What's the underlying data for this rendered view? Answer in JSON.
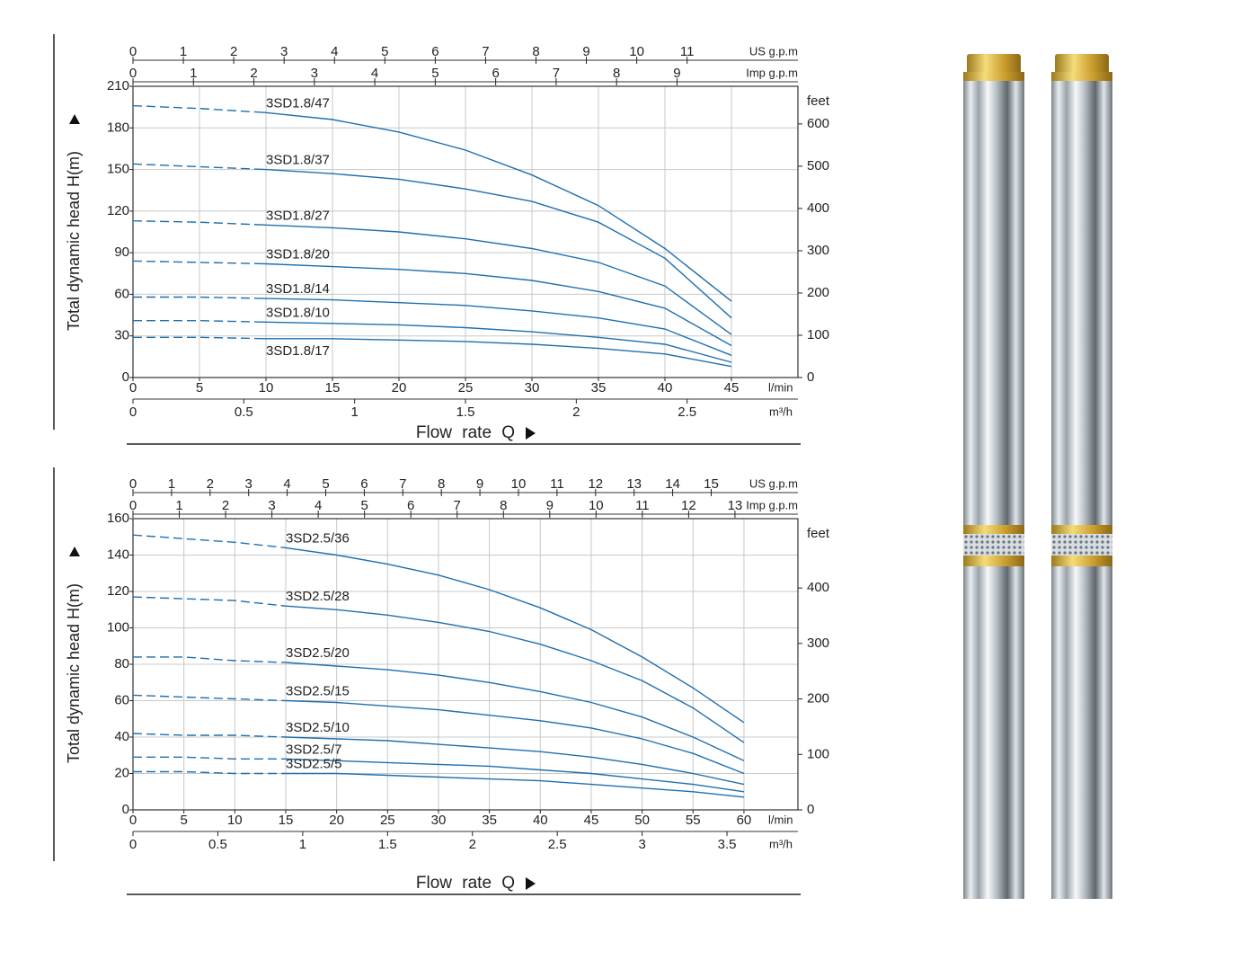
{
  "chart_data": [
    {
      "type": "line",
      "y_label": "Total dynamic head H(m)",
      "x_label": "Flow rate Q",
      "x_unit": "l/min",
      "x": [
        0,
        5,
        10,
        15,
        20,
        25,
        30,
        35,
        40,
        45
      ],
      "xlim": [
        0,
        50
      ],
      "xticks": [
        0,
        5,
        10,
        15,
        20,
        25,
        30,
        35,
        40,
        45
      ],
      "ylim": [
        0,
        210
      ],
      "yticks": [
        0,
        30,
        60,
        90,
        120,
        150,
        180,
        210
      ],
      "y2_unit": "feet",
      "y2lim": [
        0,
        689
      ],
      "y2ticks": [
        0,
        100,
        200,
        300,
        400,
        500,
        600
      ],
      "x2_unit": "m³/h",
      "x2lim": [
        0,
        3
      ],
      "x2ticks": [
        0,
        0.5,
        1,
        1.5,
        2,
        2.5
      ],
      "top_axes": [
        {
          "unit": "US g.p.m",
          "lim": [
            0,
            13.2
          ],
          "ticks": [
            0,
            1,
            2,
            3,
            4,
            5,
            6,
            7,
            8,
            9,
            10,
            11
          ]
        },
        {
          "unit": "Imp g.p.m",
          "lim": [
            0,
            11
          ],
          "ticks": [
            0,
            1,
            2,
            3,
            4,
            5,
            6,
            7,
            8,
            9
          ]
        }
      ],
      "grid": true,
      "dash_until": 10,
      "series": [
        {
          "name": "3SD1.8/47",
          "color": "#1f6fae",
          "values": [
            196,
            194,
            191,
            186,
            177,
            164,
            146,
            124,
            93,
            55
          ]
        },
        {
          "name": "3SD1.8/37",
          "color": "#1f6fae",
          "values": [
            154,
            152,
            150,
            147,
            143,
            136,
            127,
            112,
            86,
            43
          ]
        },
        {
          "name": "3SD1.8/27",
          "color": "#1f6fae",
          "values": [
            113,
            112,
            110,
            108,
            105,
            100,
            93,
            83,
            66,
            31
          ]
        },
        {
          "name": "3SD1.8/20",
          "color": "#1f6fae",
          "values": [
            84,
            83,
            82,
            80,
            78,
            75,
            70,
            62,
            50,
            23
          ]
        },
        {
          "name": "3SD1.8/14",
          "color": "#1f6fae",
          "values": [
            58,
            58,
            57,
            56,
            54,
            52,
            48,
            43,
            35,
            16
          ]
        },
        {
          "name": "3SD1.8/10",
          "color": "#1f6fae",
          "values": [
            41,
            41,
            40,
            39,
            38,
            36,
            33,
            29,
            24,
            11
          ]
        },
        {
          "name": "3SD1.8/17",
          "color": "#1f6fae",
          "values": [
            29,
            29,
            28,
            28,
            27,
            26,
            24,
            21,
            17,
            8
          ]
        }
      ]
    },
    {
      "type": "line",
      "y_label": "Total dynamic head H(m)",
      "x_label": "Flow rate Q",
      "x_unit": "l/min",
      "x": [
        0,
        5,
        10,
        15,
        20,
        25,
        30,
        35,
        40,
        45,
        50,
        55,
        60
      ],
      "xlim": [
        0,
        65.3
      ],
      "xticks": [
        0,
        5,
        10,
        15,
        20,
        25,
        30,
        35,
        40,
        45,
        50,
        55,
        60
      ],
      "ylim": [
        0,
        160
      ],
      "yticks": [
        0,
        20,
        40,
        60,
        80,
        100,
        120,
        140,
        160
      ],
      "y2_unit": "feet",
      "y2lim": [
        0,
        525
      ],
      "y2ticks": [
        0,
        100,
        200,
        300,
        400
      ],
      "x2_unit": "m³/h",
      "x2lim": [
        0,
        3.918
      ],
      "x2ticks": [
        0,
        0.5,
        1,
        1.5,
        2,
        2.5,
        3,
        3.5
      ],
      "top_axes": [
        {
          "unit": "US g.p.m",
          "lim": [
            0,
            17.25
          ],
          "ticks": [
            0,
            1,
            2,
            3,
            4,
            5,
            6,
            7,
            8,
            9,
            10,
            11,
            12,
            13,
            14,
            15
          ]
        },
        {
          "unit": "Imp g.p.m",
          "lim": [
            0,
            14.36
          ],
          "ticks": [
            0,
            1,
            2,
            3,
            4,
            5,
            6,
            7,
            8,
            9,
            10,
            11,
            12,
            13
          ]
        }
      ],
      "grid": true,
      "dash_until": 15,
      "series": [
        {
          "name": "3SD2.5/36",
          "color": "#1f6fae",
          "values": [
            151,
            149,
            147,
            144,
            140,
            135,
            129,
            121,
            111,
            99,
            84,
            67,
            48
          ]
        },
        {
          "name": "3SD2.5/28",
          "color": "#1f6fae",
          "values": [
            117,
            116,
            115,
            112,
            110,
            107,
            103,
            98,
            91,
            82,
            71,
            56,
            37
          ]
        },
        {
          "name": "3SD2.5/20",
          "color": "#1f6fae",
          "values": [
            84,
            84,
            82,
            81,
            79,
            77,
            74,
            70,
            65,
            59,
            51,
            40,
            27
          ]
        },
        {
          "name": "3SD2.5/15",
          "color": "#1f6fae",
          "values": [
            63,
            62,
            61,
            60,
            59,
            57,
            55,
            52,
            49,
            45,
            39,
            31,
            20
          ]
        },
        {
          "name": "3SD2.5/10",
          "color": "#1f6fae",
          "values": [
            42,
            41,
            41,
            40,
            39,
            38,
            36,
            34,
            32,
            29,
            25,
            20,
            14
          ]
        },
        {
          "name": "3SD2.5/7",
          "color": "#1f6fae",
          "values": [
            29,
            29,
            28,
            28,
            27,
            26,
            25,
            24,
            22,
            20,
            17,
            14,
            10
          ]
        },
        {
          "name": "3SD2.5/5",
          "color": "#1f6fae",
          "values": [
            21,
            21,
            20,
            20,
            20,
            19,
            18,
            17,
            16,
            14,
            12,
            10,
            7
          ]
        }
      ]
    }
  ]
}
